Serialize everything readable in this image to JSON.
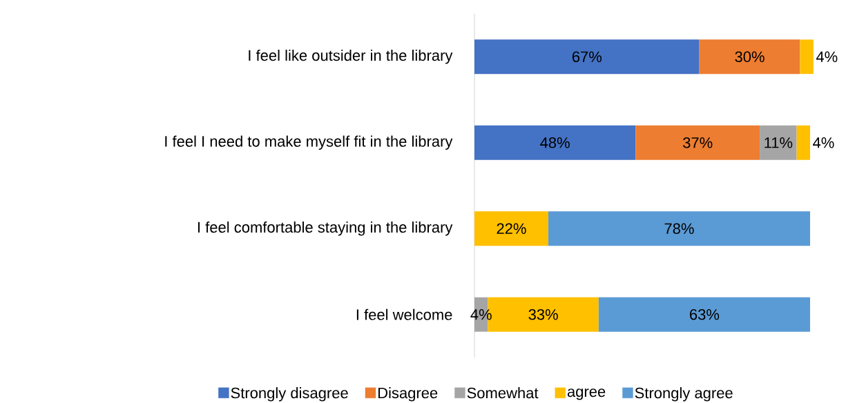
{
  "chart_data": {
    "type": "bar",
    "orientation": "horizontal",
    "stacked": true,
    "legend": "bottom",
    "categories": [
      "I feel like outsider in the library",
      "I feel I need to make myself fit in the library",
      "I feel comfortable staying in the library",
      "I feel welcome"
    ],
    "series": [
      {
        "name": "Strongly disagree",
        "color": "#4472c4",
        "values": [
          67,
          48,
          null,
          null
        ],
        "value_labels": [
          "67%",
          "48%",
          null,
          null
        ]
      },
      {
        "name": "Disagree",
        "color": "#ed7d31",
        "values": [
          30,
          37,
          null,
          null
        ],
        "value_labels": [
          "30%",
          "37%",
          null,
          null
        ]
      },
      {
        "name": "Somewhat",
        "color": "#a5a5a5",
        "values": [
          null,
          11,
          null,
          4
        ],
        "value_labels": [
          null,
          "11%",
          null,
          "4%"
        ]
      },
      {
        "name": "agree",
        "color": "#ffc000",
        "values": [
          4,
          4,
          22,
          33
        ],
        "value_labels": [
          "4%",
          "4%",
          "22%",
          "33%"
        ]
      },
      {
        "name": "Strongly agree",
        "color": "#5b9bd5",
        "values": [
          null,
          null,
          78,
          63
        ],
        "value_labels": [
          null,
          null,
          "78%",
          "63%"
        ]
      }
    ]
  }
}
